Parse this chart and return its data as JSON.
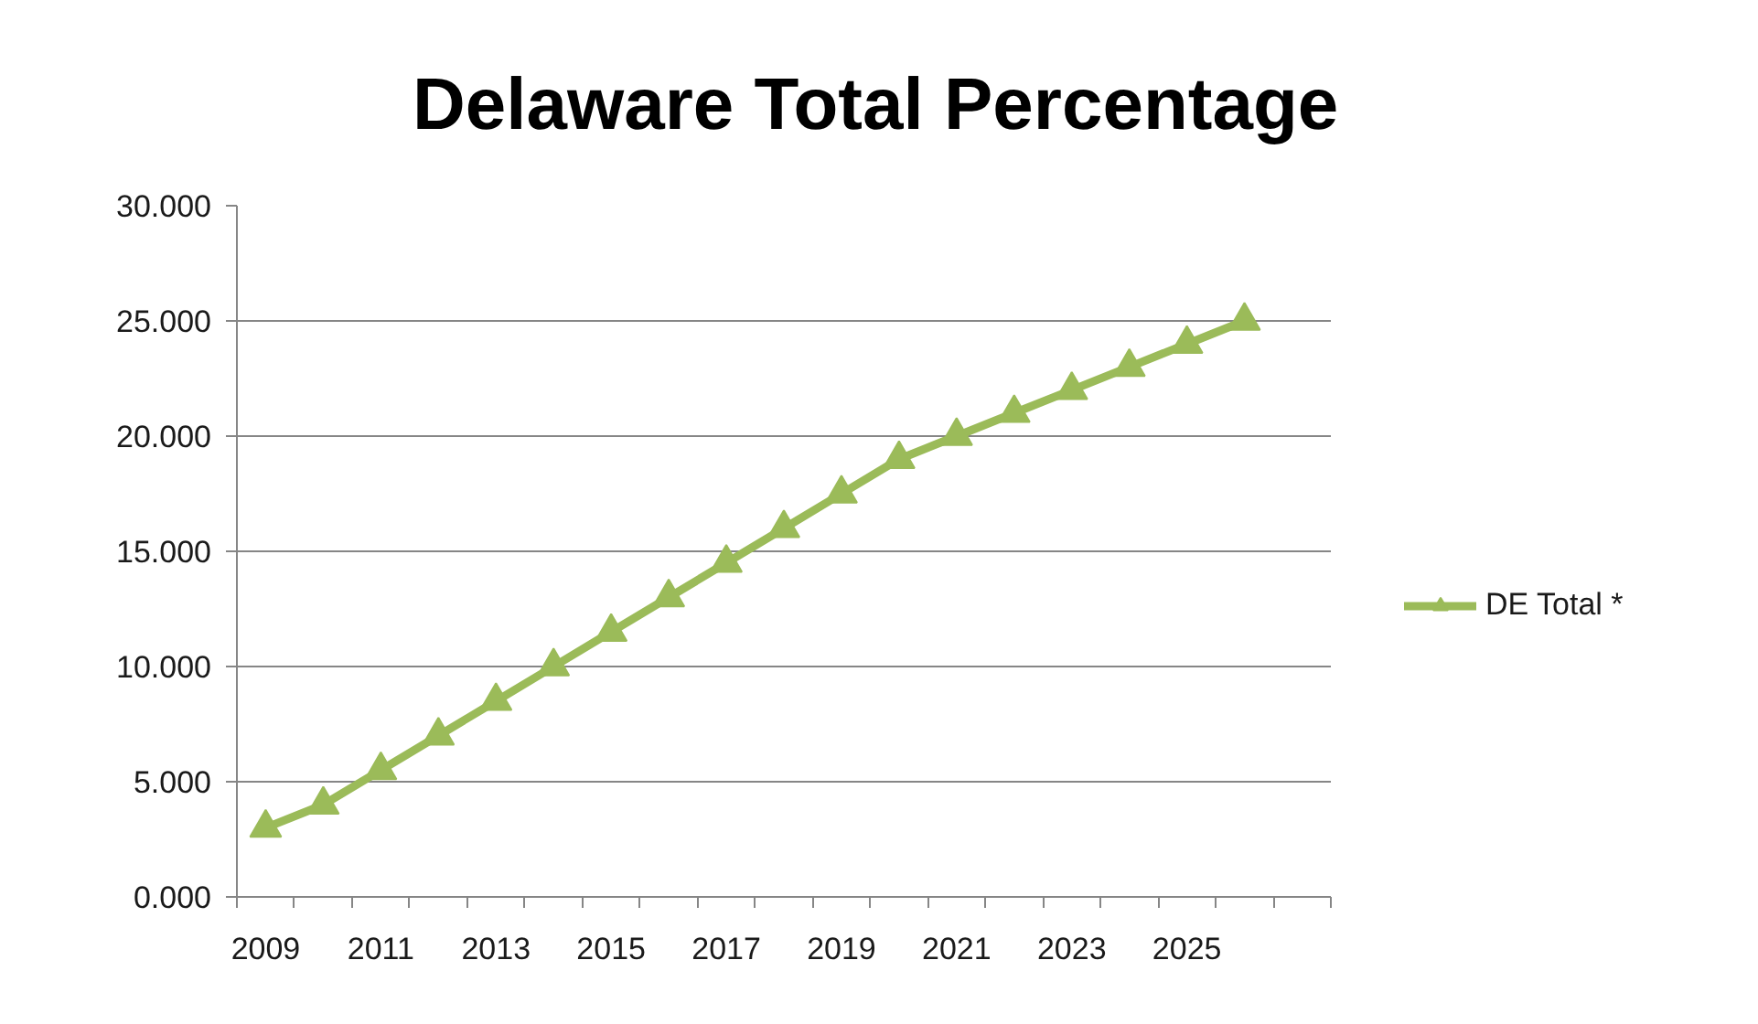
{
  "chart_data": {
    "type": "line",
    "title": "Delaware Total Percentage",
    "categories": [
      "2009",
      null,
      "2011",
      null,
      "2013",
      null,
      "2015",
      null,
      "2017",
      null,
      "2019",
      null,
      "2021",
      null,
      "2023",
      null,
      "2025",
      null,
      null
    ],
    "series": [
      {
        "name": "DE Total *",
        "color": "#9bbb59",
        "values": [
          3,
          4,
          5.5,
          7,
          8.5,
          10,
          11.5,
          13,
          14.5,
          16,
          17.5,
          19,
          20,
          21,
          22,
          23,
          24,
          25,
          null
        ]
      }
    ],
    "ylim": [
      0,
      30
    ],
    "yticks": [
      {
        "value": 0,
        "label": "0.000"
      },
      {
        "value": 5,
        "label": "5.000"
      },
      {
        "value": 10,
        "label": "10.000"
      },
      {
        "value": 15,
        "label": "15.000"
      },
      {
        "value": 20,
        "label": "20.000"
      },
      {
        "value": 25,
        "label": "25.000"
      },
      {
        "value": 30,
        "label": "30.000"
      }
    ],
    "grid": "y",
    "legend": "right",
    "marker": "triangle",
    "line_style": "solid"
  }
}
